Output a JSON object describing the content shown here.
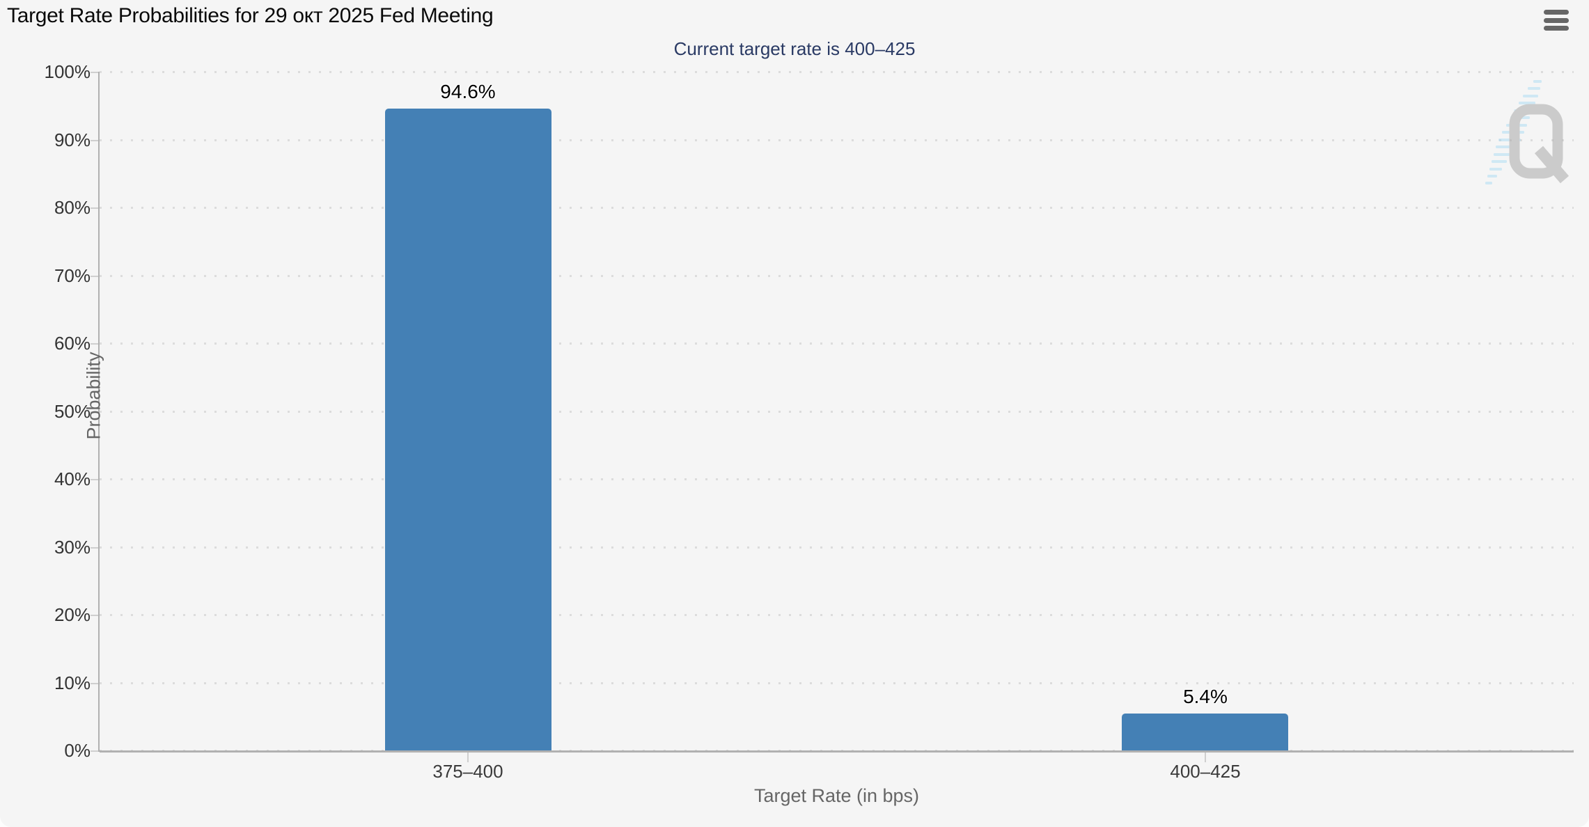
{
  "chart": {
    "title": "Target Rate Probabilities for 29 окт 2025 Fed Meeting",
    "subtitle": "Current target rate is 400–425",
    "menu_tooltip": "Chart context menu"
  },
  "icons": {
    "menu": "hamburger-menu-icon",
    "watermark": "q-logo-watermark"
  },
  "chart_data": {
    "type": "bar",
    "title": "Target Rate Probabilities for 29 окт 2025 Fed Meeting",
    "subtitle": "Current target rate is 400–425",
    "categories": [
      "375–400",
      "400–425"
    ],
    "values": [
      94.6,
      5.4
    ],
    "value_labels": [
      "94.6%",
      "5.4%"
    ],
    "xlabel": "Target Rate (in bps)",
    "ylabel": "Probability",
    "ylim": [
      0,
      100
    ],
    "y_tick_step": 10,
    "y_tick_labels": [
      "100%",
      "90%",
      "80%",
      "70%",
      "60%",
      "50%",
      "40%",
      "30%",
      "20%",
      "10%",
      "0%"
    ],
    "grid": "dotted horizontal gridlines",
    "legend": "none",
    "colors": {
      "bar": "#4480b5",
      "background": "#f5f5f5",
      "subtitle_text": "#2a3a64",
      "axis_line": "#b1b1b1",
      "gridline": "#dcdcdc",
      "tick_label": "#333333",
      "axis_title": "#666666",
      "watermark_blue": "#9fd8f2",
      "watermark_gray": "#a9a9a9"
    }
  }
}
